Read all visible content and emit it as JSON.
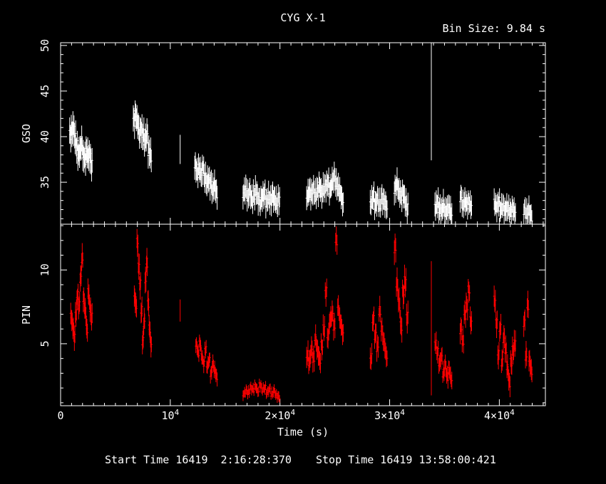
{
  "chart_data": {
    "type": "scatter",
    "title": "CYG X-1",
    "bin_size_label": "Bin Size: 9.84 s",
    "xlabel": "Time (s)",
    "x_ticks": [
      {
        "value": 0,
        "label": "0",
        "exp": ""
      },
      {
        "value": 10000,
        "label": "10",
        "exp": "4"
      },
      {
        "value": 20000,
        "label": "2×10",
        "exp": "4"
      },
      {
        "value": 30000,
        "label": "3×10",
        "exp": "4"
      },
      {
        "value": 40000,
        "label": "4×10",
        "exp": "4"
      }
    ],
    "xlim": [
      0,
      44200
    ],
    "footer": {
      "start_label": "Start Time 16419  2:16:28:370",
      "stop_label": "Stop Time 16419 13:58:00:421"
    },
    "panels": [
      {
        "name": "GSO",
        "ylabel": "GSO",
        "color": "#ffffff",
        "ylim": [
          30.4,
          50.3
        ],
        "y_ticks": [
          35,
          40,
          45,
          50
        ],
        "segments": [
          {
            "x0": 800,
            "x1": 2900,
            "means": [
              40.2,
              40.6,
              40.9,
              39.8,
              38.9,
              38.1,
              38.5,
              39.2,
              38.0,
              37.6,
              38.3,
              37.9,
              38.0,
              36.9
            ],
            "err": 1.2
          },
          {
            "x0": 6600,
            "x1": 8300,
            "means": [
              41.8,
              42.3,
              41.5,
              40.4,
              40.8,
              40.1,
              39.6,
              40.2,
              38.5,
              37.9
            ],
            "err": 1.2
          },
          {
            "x0": 12200,
            "x1": 14300,
            "means": [
              36.8,
              36.1,
              36.5,
              35.9,
              36.6,
              35.5,
              35.0,
              35.3,
              34.9,
              34.2,
              34.6,
              33.9
            ],
            "err": 1.1
          },
          {
            "x0": 16600,
            "x1": 20000,
            "means": [
              33.8,
              34.2,
              33.5,
              33.9,
              33.1,
              33.6,
              34.0,
              33.2,
              32.8,
              33.4,
              33.7,
              32.9,
              33.3,
              33.0,
              33.5,
              33.1,
              32.7,
              33.2
            ],
            "err": 1.1
          },
          {
            "x0": 22400,
            "x1": 25800,
            "means": [
              33.5,
              34.0,
              33.7,
              34.2,
              33.6,
              34.1,
              34.5,
              33.8,
              34.3,
              34.6,
              34.9,
              34.2,
              35.0,
              35.6,
              34.8,
              34.4,
              33.8,
              32.9
            ],
            "err": 1.1
          },
          {
            "x0": 28200,
            "x1": 29800,
            "means": [
              32.8,
              33.4,
              32.6,
              33.1,
              32.5,
              33.2,
              32.9,
              32.4
            ],
            "err": 1.1
          },
          {
            "x0": 30400,
            "x1": 31700,
            "means": [
              34.3,
              34.8,
              33.9,
              33.5,
              33.8,
              32.9,
              32.1
            ],
            "err": 1.1
          },
          {
            "x0": 34100,
            "x1": 35700,
            "means": [
              32.3,
              32.7,
              32.1,
              31.9,
              32.4,
              31.7,
              32.0,
              32.2,
              31.6
            ],
            "err": 1.1
          },
          {
            "x0": 36400,
            "x1": 37500,
            "means": [
              33.4,
              32.5,
              32.9,
              32.6,
              32.8,
              32.4
            ],
            "err": 1.0
          },
          {
            "x0": 39500,
            "x1": 41500,
            "means": [
              32.6,
              32.3,
              32.8,
              32.1,
              32.4,
              31.9,
              32.2,
              32.0,
              31.8,
              32.1,
              31.7
            ],
            "err": 1.0
          },
          {
            "x0": 42200,
            "x1": 43000,
            "means": [
              32.0,
              31.6,
              31.9,
              31.3
            ],
            "err": 1.0
          }
        ],
        "lines": [
          {
            "x": 10900,
            "y0": 37.0,
            "y1": 40.2
          },
          {
            "x": 33800,
            "y0": 37.4,
            "y1": 50.3
          }
        ]
      },
      {
        "name": "PIN",
        "ylabel": "PIN",
        "color": "#ff0000",
        "ylim": [
          0.8,
          13.1
        ],
        "y_ticks": [
          5,
          10
        ],
        "segments": [
          {
            "x0": 900,
            "x1": 2900,
            "means": [
              6.8,
              6.2,
              5.5,
              7.0,
              8.2,
              7.6,
              9.5,
              10.8,
              8.0,
              7.2,
              6.0,
              8.4,
              7.5,
              6.8
            ],
            "err": 0.6
          },
          {
            "x0": 6700,
            "x1": 8300,
            "means": [
              8.1,
              7.6,
              11.8,
              10.2,
              9.0,
              7.2,
              5.2,
              6.5,
              9.4,
              10.5,
              7.8,
              6.0,
              5.0
            ],
            "err": 0.6
          },
          {
            "x0": 12300,
            "x1": 14300,
            "means": [
              4.9,
              4.4,
              5.0,
              4.1,
              3.7,
              4.6,
              3.5,
              3.9,
              3.0,
              3.6,
              3.2,
              2.8
            ],
            "err": 0.4
          },
          {
            "x0": 16600,
            "x1": 20000,
            "means": [
              1.6,
              1.8,
              1.7,
              2.0,
              1.9,
              2.1,
              1.8,
              2.2,
              1.9,
              2.0,
              1.7,
              1.9,
              1.6,
              1.8,
              1.5,
              1.4
            ],
            "err": 0.3
          },
          {
            "x0": 22400,
            "x1": 25800,
            "means": [
              4.2,
              3.8,
              4.6,
              4.0,
              5.3,
              4.5,
              3.9,
              4.8,
              6.0,
              8.5,
              5.5,
              6.6,
              7.0,
              6.2,
              12.0,
              7.4,
              6.5,
              5.8
            ],
            "err": 0.6
          },
          {
            "x0": 28200,
            "x1": 29800,
            "means": [
              4.0,
              6.6,
              5.6,
              4.8,
              7.2,
              5.9,
              5.0,
              4.2
            ],
            "err": 0.6
          },
          {
            "x0": 30400,
            "x1": 31700,
            "means": [
              11.5,
              9.0,
              7.8,
              6.2,
              8.4,
              9.2,
              6.8
            ],
            "err": 0.7
          },
          {
            "x0": 34100,
            "x1": 35700,
            "means": [
              5.0,
              4.4,
              3.7,
              4.1,
              3.0,
              3.5,
              2.8,
              3.2,
              2.6
            ],
            "err": 0.5
          },
          {
            "x0": 36400,
            "x1": 37500,
            "means": [
              6.0,
              5.2,
              7.0,
              7.6,
              8.6,
              6.5
            ],
            "err": 0.6
          },
          {
            "x0": 39500,
            "x1": 41500,
            "means": [
              7.9,
              6.4,
              4.2,
              6.0,
              3.8,
              5.4,
              4.6,
              3.3,
              2.4,
              3.7,
              4.5,
              5.0
            ],
            "err": 0.6
          },
          {
            "x0": 42200,
            "x1": 43000,
            "means": [
              6.5,
              4.2,
              7.6,
              3.8,
              3.2
            ],
            "err": 0.6
          }
        ],
        "lines": [
          {
            "x": 10900,
            "y0": 6.5,
            "y1": 8.0
          },
          {
            "x": 33800,
            "y0": 1.5,
            "y1": 10.6
          }
        ]
      }
    ]
  }
}
